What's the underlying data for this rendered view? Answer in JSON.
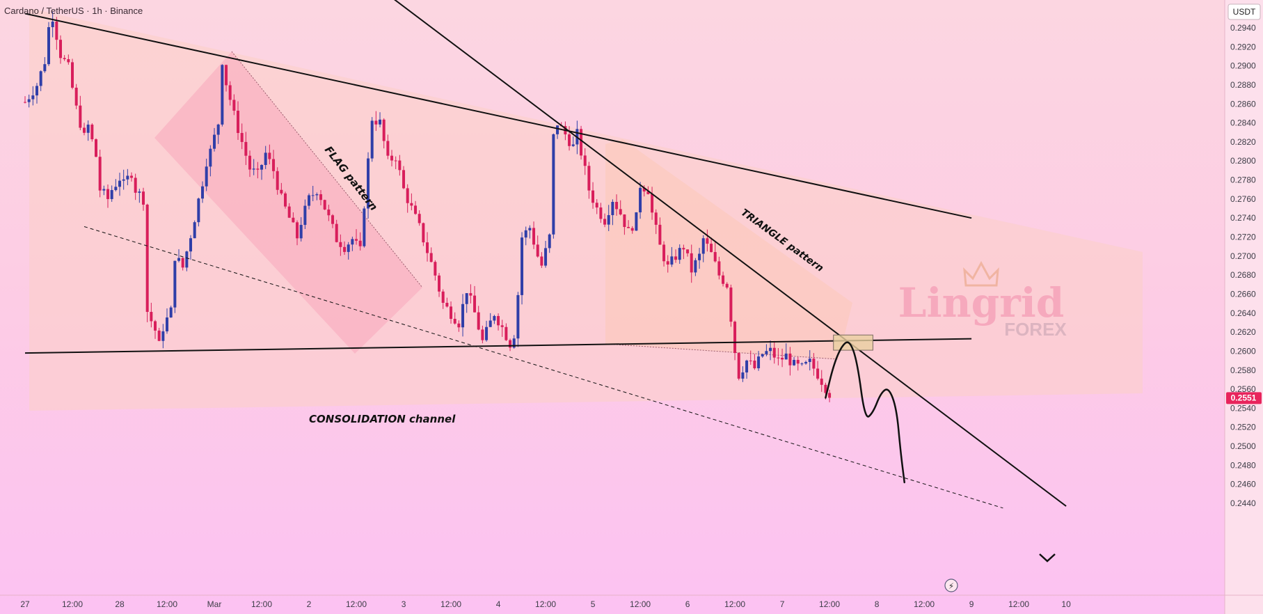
{
  "header": {
    "symbol_title": "Cardano / TetherUS · 1h · Binance"
  },
  "price_scale": {
    "currency": "USDT",
    "last_price_label": "0.2551",
    "last_price_color": "#e8245c"
  },
  "watermark": {
    "brand": "Lingrid",
    "sub": "FOREX"
  },
  "colors": {
    "up": "#2f3ea8",
    "down": "#d81e5b",
    "line": "#111111",
    "flag_fill": "#f7a7bc",
    "triangle_fill": "#fbc8b8",
    "channel_fill": "#fccfc6"
  },
  "chart_data": {
    "type": "candlestick",
    "title": "Cardano / TetherUS · 1h · Binance",
    "y_unit": "USDT",
    "ylim": [
      0.2432,
      0.2956
    ],
    "y_ticks": [
      0.244,
      0.246,
      0.248,
      0.25,
      0.252,
      0.254,
      0.256,
      0.258,
      0.26,
      0.262,
      0.264,
      0.266,
      0.268,
      0.27,
      0.272,
      0.274,
      0.276,
      0.278,
      0.28,
      0.282,
      0.284,
      0.286,
      0.288,
      0.29,
      0.292,
      0.294
    ],
    "x_time_hours": "hours since first visible candle (Feb 27, ~09:00)",
    "x_range": [
      0,
      276
    ],
    "x_ticks": [
      {
        "t": 0,
        "label": "27"
      },
      {
        "t": 12,
        "label": "12:00"
      },
      {
        "t": 24,
        "label": "28"
      },
      {
        "t": 36,
        "label": "12:00"
      },
      {
        "t": 48,
        "label": "Mar"
      },
      {
        "t": 60,
        "label": "12:00"
      },
      {
        "t": 72,
        "label": "2"
      },
      {
        "t": 84,
        "label": "12:00"
      },
      {
        "t": 96,
        "label": "3"
      },
      {
        "t": 108,
        "label": "12:00"
      },
      {
        "t": 120,
        "label": "4"
      },
      {
        "t": 132,
        "label": "12:00"
      },
      {
        "t": 144,
        "label": "5"
      },
      {
        "t": 156,
        "label": "12:00"
      },
      {
        "t": 168,
        "label": "6"
      },
      {
        "t": 180,
        "label": "12:00"
      },
      {
        "t": 192,
        "label": "7"
      },
      {
        "t": 204,
        "label": "12:00"
      },
      {
        "t": 216,
        "label": "8"
      },
      {
        "t": 228,
        "label": "12:00"
      },
      {
        "t": 240,
        "label": "9"
      },
      {
        "t": 252,
        "label": "12:00"
      },
      {
        "t": 264,
        "label": "10"
      }
    ],
    "close_path": [
      [
        0,
        0.2862
      ],
      [
        3,
        0.288
      ],
      [
        5,
        0.2905
      ],
      [
        6,
        0.294
      ],
      [
        7,
        0.2952
      ],
      [
        9,
        0.2912
      ],
      [
        11,
        0.2898
      ],
      [
        13,
        0.2855
      ],
      [
        15,
        0.2825
      ],
      [
        16,
        0.2837
      ],
      [
        18,
        0.2805
      ],
      [
        19,
        0.277
      ],
      [
        21,
        0.276
      ],
      [
        22,
        0.277
      ],
      [
        24,
        0.2782
      ],
      [
        25,
        0.2775
      ],
      [
        27,
        0.2788
      ],
      [
        28,
        0.277
      ],
      [
        30,
        0.276
      ],
      [
        31,
        0.2642
      ],
      [
        33,
        0.2622
      ],
      [
        34,
        0.2606
      ],
      [
        35,
        0.2625
      ],
      [
        37,
        0.2642
      ],
      [
        38,
        0.27
      ],
      [
        40,
        0.2688
      ],
      [
        42,
        0.2722
      ],
      [
        43,
        0.274
      ],
      [
        45,
        0.2778
      ],
      [
        46,
        0.28
      ],
      [
        47,
        0.281
      ],
      [
        49,
        0.284
      ],
      [
        50,
        0.2906
      ],
      [
        51,
        0.2882
      ],
      [
        53,
        0.2848
      ],
      [
        55,
        0.282
      ],
      [
        57,
        0.2792
      ],
      [
        59,
        0.2785
      ],
      [
        61,
        0.2808
      ],
      [
        63,
        0.279
      ],
      [
        65,
        0.276
      ],
      [
        67,
        0.274
      ],
      [
        69,
        0.272
      ],
      [
        70,
        0.2736
      ],
      [
        72,
        0.276
      ],
      [
        74,
        0.277
      ],
      [
        75,
        0.2762
      ],
      [
        77,
        0.274
      ],
      [
        79,
        0.2718
      ],
      [
        81,
        0.271
      ],
      [
        83,
        0.2718
      ],
      [
        85,
        0.2705
      ],
      [
        86,
        0.2755
      ],
      [
        88,
        0.2845
      ],
      [
        90,
        0.284
      ],
      [
        92,
        0.28
      ],
      [
        94,
        0.2805
      ],
      [
        96,
        0.277
      ],
      [
        98,
        0.275
      ],
      [
        100,
        0.273
      ],
      [
        102,
        0.2705
      ],
      [
        104,
        0.268
      ],
      [
        106,
        0.265
      ],
      [
        108,
        0.264
      ],
      [
        110,
        0.263
      ],
      [
        112,
        0.2665
      ],
      [
        114,
        0.264
      ],
      [
        116,
        0.261
      ],
      [
        117,
        0.262
      ],
      [
        119,
        0.264
      ],
      [
        121,
        0.2625
      ],
      [
        123,
        0.2608
      ],
      [
        124,
        0.2618
      ],
      [
        125,
        0.266
      ],
      [
        126,
        0.272
      ],
      [
        128,
        0.273
      ],
      [
        130,
        0.27
      ],
      [
        131,
        0.269
      ],
      [
        133,
        0.272
      ],
      [
        134,
        0.2825
      ],
      [
        135,
        0.284
      ],
      [
        137,
        0.2828
      ],
      [
        139,
        0.2815
      ],
      [
        140,
        0.2828
      ],
      [
        142,
        0.279
      ],
      [
        143,
        0.277
      ],
      [
        145,
        0.275
      ],
      [
        147,
        0.2738
      ],
      [
        149,
        0.276
      ],
      [
        151,
        0.2745
      ],
      [
        153,
        0.2725
      ],
      [
        155,
        0.274
      ],
      [
        156,
        0.2775
      ],
      [
        158,
        0.277
      ],
      [
        159,
        0.2745
      ],
      [
        161,
        0.271
      ],
      [
        163,
        0.2688
      ],
      [
        165,
        0.27
      ],
      [
        167,
        0.271
      ],
      [
        169,
        0.2685
      ],
      [
        171,
        0.27
      ],
      [
        172,
        0.2718
      ],
      [
        174,
        0.2702
      ],
      [
        176,
        0.268
      ],
      [
        178,
        0.267
      ],
      [
        179,
        0.2635
      ],
      [
        180,
        0.26
      ],
      [
        181,
        0.2575
      ],
      [
        183,
        0.259
      ],
      [
        185,
        0.2582
      ],
      [
        187,
        0.2597
      ],
      [
        189,
        0.26
      ],
      [
        191,
        0.259
      ],
      [
        193,
        0.2595
      ],
      [
        195,
        0.2585
      ],
      [
        197,
        0.2582
      ],
      [
        199,
        0.2588
      ],
      [
        201,
        0.2576
      ],
      [
        203,
        0.2562
      ],
      [
        204,
        0.2551
      ]
    ],
    "trendlines": [
      {
        "name": "descending-resistance",
        "p1": [
          0,
          0.2955
        ],
        "p2": [
          240,
          0.274
        ],
        "style": "solid"
      },
      {
        "name": "steep-descending",
        "p1": [
          92,
          0.2975
        ],
        "p2": [
          264,
          0.2437
        ],
        "style": "solid"
      },
      {
        "name": "consolidation-support",
        "p1": [
          0,
          0.2598
        ],
        "p2": [
          240,
          0.2613
        ],
        "style": "solid"
      },
      {
        "name": "lower-channel",
        "p1": [
          15,
          0.2731
        ],
        "p2": [
          248,
          0.2435
        ],
        "style": "dashed"
      }
    ],
    "forecast_path": [
      [
        203,
        0.2551
      ],
      [
        205,
        0.2585
      ],
      [
        207,
        0.2605
      ],
      [
        209,
        0.2612
      ],
      [
        211,
        0.259
      ],
      [
        213,
        0.2528
      ],
      [
        215,
        0.2535
      ],
      [
        217,
        0.2556
      ],
      [
        219,
        0.2562
      ],
      [
        221,
        0.254
      ],
      [
        222,
        0.2495
      ],
      [
        223,
        0.2462
      ]
    ],
    "target_zone": {
      "t": [
        205,
        215
      ],
      "y": [
        0.2601,
        0.2617
      ]
    },
    "annotations": [
      {
        "text": "FLAG pattern"
      },
      {
        "text": "TRIANGLE pattern"
      },
      {
        "text": "CONSOLIDATION channel"
      }
    ]
  }
}
